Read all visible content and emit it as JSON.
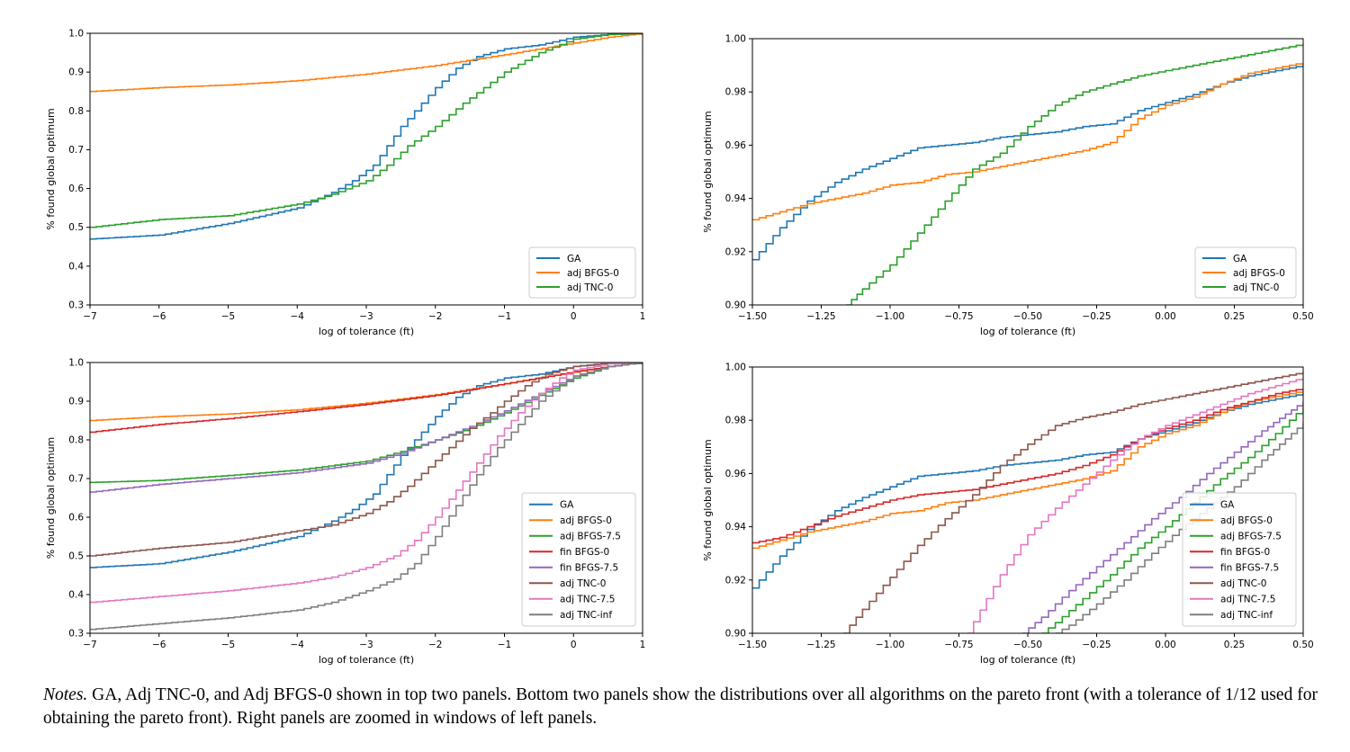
{
  "colors": {
    "GA": "#1f77b4",
    "adj BFGS-0": "#ff7f0e",
    "adj BFGS-7.5": "#2ca02c",
    "fin BFGS-0": "#d62728",
    "fin BFGS-7.5": "#9467bd",
    "adj TNC-0": "#8c564b",
    "adj TNC-7.5": "#e377c2",
    "adj TNC-inf": "#7f7f7f",
    "adj TNC-0 (top)": "#2ca02c"
  },
  "chart_data": [
    {
      "id": "top-left",
      "type": "line",
      "xlabel": "log of tolerance (ft)",
      "ylabel": "% found global optimum",
      "xlim": [
        -7,
        1
      ],
      "ylim": [
        0.3,
        1.0
      ],
      "xticks": [
        -7,
        -6,
        -5,
        -4,
        -3,
        -2,
        -1,
        0,
        1
      ],
      "xtick_labels": [
        "−7",
        "−6",
        "−5",
        "−4",
        "−3",
        "−2",
        "−1",
        "0",
        "1"
      ],
      "yticks": [
        0.3,
        0.4,
        0.5,
        0.6,
        0.7,
        0.8,
        0.9,
        1.0
      ],
      "ytick_labels": [
        "0.3",
        "0.4",
        "0.5",
        "0.6",
        "0.7",
        "0.8",
        "0.9",
        "1.0"
      ],
      "legend_position": "lower-right",
      "series": [
        {
          "name": "GA",
          "color": "#1f77b4",
          "x": [
            -7,
            -6,
            -5,
            -4,
            -3.5,
            -3.2,
            -2.9,
            -2.7,
            -2.5,
            -2.3,
            -2.0,
            -1.7,
            -1.4,
            -1.0,
            -0.5,
            0,
            0.5,
            1
          ],
          "y": [
            0.47,
            0.48,
            0.51,
            0.55,
            0.59,
            0.62,
            0.66,
            0.71,
            0.76,
            0.8,
            0.86,
            0.91,
            0.94,
            0.96,
            0.97,
            0.99,
            0.997,
            1.0
          ]
        },
        {
          "name": "adj BFGS-0",
          "color": "#ff7f0e",
          "x": [
            -7,
            -6,
            -5,
            -4,
            -3,
            -2,
            -1,
            0,
            0.5,
            1
          ],
          "y": [
            0.85,
            0.86,
            0.867,
            0.878,
            0.895,
            0.917,
            0.945,
            0.975,
            0.99,
            1.0
          ]
        },
        {
          "name": "adj TNC-0",
          "color": "#2ca02c",
          "x": [
            -7,
            -6,
            -5,
            -4,
            -3.5,
            -3,
            -2.7,
            -2.4,
            -2,
            -1.6,
            -1.3,
            -1,
            -0.5,
            0,
            0.5,
            1
          ],
          "y": [
            0.5,
            0.52,
            0.53,
            0.56,
            0.585,
            0.62,
            0.66,
            0.71,
            0.76,
            0.82,
            0.86,
            0.9,
            0.95,
            0.985,
            0.997,
            1.0
          ]
        }
      ]
    },
    {
      "id": "top-right",
      "type": "line",
      "xlabel": "log of tolerance (ft)",
      "ylabel": "% found global optimum",
      "xlim": [
        -1.5,
        0.5
      ],
      "ylim": [
        0.9,
        1.0
      ],
      "xticks": [
        -1.5,
        -1.25,
        -1.0,
        -0.75,
        -0.5,
        -0.25,
        0.0,
        0.25,
        0.5
      ],
      "xtick_labels": [
        "−1.50",
        "−1.25",
        "−1.00",
        "−0.75",
        "−0.50",
        "−0.25",
        "0.00",
        "0.25",
        "0.50"
      ],
      "yticks": [
        0.9,
        0.92,
        0.94,
        0.96,
        0.98,
        1.0
      ],
      "ytick_labels": [
        "0.90",
        "0.92",
        "0.94",
        "0.96",
        "0.98",
        "1.00"
      ],
      "legend_position": "lower-right",
      "series": [
        {
          "name": "GA",
          "color": "#1f77b4",
          "x": [
            -1.5,
            -1.4,
            -1.3,
            -1.2,
            -1.1,
            -1.0,
            -0.9,
            -0.8,
            -0.7,
            -0.6,
            -0.5,
            -0.4,
            -0.3,
            -0.2,
            -0.1,
            0.0,
            0.1,
            0.2,
            0.3,
            0.4,
            0.5
          ],
          "y": [
            0.917,
            0.929,
            0.939,
            0.946,
            0.951,
            0.955,
            0.959,
            0.96,
            0.961,
            0.963,
            0.964,
            0.965,
            0.967,
            0.968,
            0.973,
            0.976,
            0.979,
            0.983,
            0.986,
            0.988,
            0.99
          ]
        },
        {
          "name": "adj BFGS-0",
          "color": "#ff7f0e",
          "x": [
            -1.5,
            -1.4,
            -1.3,
            -1.2,
            -1.1,
            -1.0,
            -0.9,
            -0.8,
            -0.7,
            -0.6,
            -0.5,
            -0.4,
            -0.3,
            -0.2,
            -0.1,
            0.0,
            0.1,
            0.2,
            0.3,
            0.4,
            0.5
          ],
          "y": [
            0.932,
            0.935,
            0.938,
            0.94,
            0.942,
            0.945,
            0.946,
            0.949,
            0.95,
            0.952,
            0.954,
            0.956,
            0.958,
            0.961,
            0.97,
            0.975,
            0.978,
            0.983,
            0.987,
            0.989,
            0.991
          ]
        },
        {
          "name": "adj TNC-0",
          "color": "#2ca02c",
          "x": [
            -1.16,
            -1.1,
            -1.0,
            -0.9,
            -0.8,
            -0.7,
            -0.6,
            -0.5,
            -0.4,
            -0.3,
            -0.2,
            -0.1,
            0.0,
            0.1,
            0.2,
            0.3,
            0.4,
            0.5
          ],
          "y": [
            0.9,
            0.906,
            0.915,
            0.927,
            0.939,
            0.951,
            0.957,
            0.967,
            0.975,
            0.98,
            0.983,
            0.986,
            0.988,
            0.99,
            0.992,
            0.994,
            0.996,
            0.998
          ]
        }
      ]
    },
    {
      "id": "bottom-left",
      "type": "line",
      "xlabel": "log of tolerance (ft)",
      "ylabel": "% found global optimum",
      "xlim": [
        -7,
        1
      ],
      "ylim": [
        0.3,
        1.0
      ],
      "xticks": [
        -7,
        -6,
        -5,
        -4,
        -3,
        -2,
        -1,
        0,
        1
      ],
      "xtick_labels": [
        "−7",
        "−6",
        "−5",
        "−4",
        "−3",
        "−2",
        "−1",
        "0",
        "1"
      ],
      "yticks": [
        0.3,
        0.4,
        0.5,
        0.6,
        0.7,
        0.8,
        0.9,
        1.0
      ],
      "ytick_labels": [
        "0.3",
        "0.4",
        "0.5",
        "0.6",
        "0.7",
        "0.8",
        "0.9",
        "1.0"
      ],
      "legend_position": "lower-right",
      "series": [
        {
          "name": "GA",
          "color": "#1f77b4",
          "x": [
            -7,
            -6,
            -5,
            -4,
            -3.5,
            -3.2,
            -2.9,
            -2.7,
            -2.5,
            -2.3,
            -2.0,
            -1.7,
            -1.4,
            -1.0,
            -0.5,
            0,
            0.5,
            1
          ],
          "y": [
            0.47,
            0.48,
            0.51,
            0.55,
            0.59,
            0.62,
            0.66,
            0.71,
            0.76,
            0.8,
            0.86,
            0.91,
            0.94,
            0.96,
            0.97,
            0.99,
            0.997,
            1.0
          ]
        },
        {
          "name": "adj BFGS-0",
          "color": "#ff7f0e",
          "x": [
            -7,
            -6,
            -5,
            -4,
            -3,
            -2,
            -1,
            0,
            0.5,
            1
          ],
          "y": [
            0.85,
            0.86,
            0.867,
            0.878,
            0.895,
            0.917,
            0.945,
            0.975,
            0.99,
            1.0
          ]
        },
        {
          "name": "adj BFGS-7.5",
          "color": "#2ca02c",
          "x": [
            -7,
            -6,
            -5,
            -4,
            -3,
            -2.5,
            -2,
            -1.5,
            -1,
            -0.5,
            0,
            0.5,
            1
          ],
          "y": [
            0.69,
            0.695,
            0.708,
            0.722,
            0.745,
            0.77,
            0.8,
            0.83,
            0.87,
            0.915,
            0.96,
            0.99,
            1.0
          ]
        },
        {
          "name": "fin BFGS-0",
          "color": "#d62728",
          "x": [
            -7,
            -6,
            -5,
            -4,
            -3,
            -2,
            -1,
            0,
            0.5,
            1
          ],
          "y": [
            0.82,
            0.84,
            0.855,
            0.873,
            0.892,
            0.915,
            0.945,
            0.976,
            0.99,
            1.0
          ]
        },
        {
          "name": "fin BFGS-7.5",
          "color": "#9467bd",
          "x": [
            -7,
            -6,
            -5,
            -4,
            -3,
            -2.5,
            -2,
            -1.5,
            -1,
            -0.5,
            0,
            0.5,
            1
          ],
          "y": [
            0.665,
            0.685,
            0.7,
            0.715,
            0.74,
            0.765,
            0.8,
            0.835,
            0.875,
            0.92,
            0.965,
            0.99,
            1.0
          ]
        },
        {
          "name": "adj TNC-0",
          "color": "#8c564b",
          "x": [
            -7,
            -6,
            -5,
            -4,
            -3.5,
            -3,
            -2.7,
            -2.4,
            -2.1,
            -1.8,
            -1.5,
            -1.2,
            -1,
            -0.7,
            -0.4,
            0,
            0.5,
            1
          ],
          "y": [
            0.5,
            0.52,
            0.535,
            0.565,
            0.58,
            0.61,
            0.64,
            0.68,
            0.73,
            0.78,
            0.83,
            0.87,
            0.9,
            0.94,
            0.97,
            0.99,
            0.998,
            1.0
          ]
        },
        {
          "name": "adj TNC-7.5",
          "color": "#e377c2",
          "x": [
            -7,
            -6,
            -5,
            -4,
            -3.5,
            -3,
            -2.6,
            -2.3,
            -2,
            -1.7,
            -1.4,
            -1.1,
            -0.8,
            -0.5,
            -0.2,
            0,
            0.5,
            1
          ],
          "y": [
            0.38,
            0.395,
            0.41,
            0.43,
            0.445,
            0.47,
            0.5,
            0.54,
            0.6,
            0.67,
            0.74,
            0.81,
            0.87,
            0.92,
            0.96,
            0.98,
            0.997,
            1.0
          ]
        },
        {
          "name": "adj TNC-inf",
          "color": "#7f7f7f",
          "x": [
            -7,
            -6,
            -5,
            -4,
            -3.5,
            -3,
            -2.6,
            -2.3,
            -2,
            -1.7,
            -1.4,
            -1.1,
            -0.8,
            -0.5,
            -0.2,
            0,
            0.5,
            1
          ],
          "y": [
            0.31,
            0.325,
            0.34,
            0.36,
            0.38,
            0.41,
            0.44,
            0.48,
            0.55,
            0.63,
            0.71,
            0.78,
            0.84,
            0.9,
            0.94,
            0.965,
            0.99,
            1.0
          ]
        }
      ]
    },
    {
      "id": "bottom-right",
      "type": "line",
      "xlabel": "log of tolerance (ft)",
      "ylabel": "% found global optimum",
      "xlim": [
        -1.5,
        0.5
      ],
      "ylim": [
        0.9,
        1.0
      ],
      "xticks": [
        -1.5,
        -1.25,
        -1.0,
        -0.75,
        -0.5,
        -0.25,
        0.0,
        0.25,
        0.5
      ],
      "xtick_labels": [
        "−1.50",
        "−1.25",
        "−1.00",
        "−0.75",
        "−0.50",
        "−0.25",
        "0.00",
        "0.25",
        "0.50"
      ],
      "yticks": [
        0.9,
        0.92,
        0.94,
        0.96,
        0.98,
        1.0
      ],
      "ytick_labels": [
        "0.90",
        "0.92",
        "0.94",
        "0.96",
        "0.98",
        "1.00"
      ],
      "legend_position": "lower-right",
      "series": [
        {
          "name": "GA",
          "color": "#1f77b4",
          "x": [
            -1.5,
            -1.4,
            -1.3,
            -1.2,
            -1.1,
            -1.0,
            -0.9,
            -0.8,
            -0.7,
            -0.6,
            -0.5,
            -0.4,
            -0.3,
            -0.2,
            -0.1,
            0.0,
            0.1,
            0.2,
            0.3,
            0.4,
            0.5
          ],
          "y": [
            0.917,
            0.929,
            0.939,
            0.946,
            0.951,
            0.955,
            0.959,
            0.96,
            0.961,
            0.963,
            0.964,
            0.965,
            0.967,
            0.968,
            0.973,
            0.976,
            0.979,
            0.983,
            0.986,
            0.988,
            0.99
          ]
        },
        {
          "name": "adj BFGS-0",
          "color": "#ff7f0e",
          "x": [
            -1.5,
            -1.4,
            -1.3,
            -1.2,
            -1.1,
            -1.0,
            -0.9,
            -0.8,
            -0.7,
            -0.6,
            -0.5,
            -0.4,
            -0.3,
            -0.2,
            -0.1,
            0.0,
            0.1,
            0.2,
            0.3,
            0.4,
            0.5
          ],
          "y": [
            0.932,
            0.935,
            0.938,
            0.94,
            0.942,
            0.945,
            0.946,
            0.949,
            0.95,
            0.952,
            0.954,
            0.956,
            0.958,
            0.961,
            0.97,
            0.975,
            0.978,
            0.983,
            0.987,
            0.989,
            0.991
          ]
        },
        {
          "name": "adj BFGS-7.5",
          "color": "#2ca02c",
          "x": [
            -0.45,
            -0.4,
            -0.3,
            -0.2,
            -0.1,
            0.0,
            0.1,
            0.2,
            0.3,
            0.4,
            0.5
          ],
          "y": [
            0.9,
            0.904,
            0.913,
            0.922,
            0.932,
            0.94,
            0.949,
            0.958,
            0.966,
            0.975,
            0.985
          ]
        },
        {
          "name": "fin BFGS-0",
          "color": "#d62728",
          "x": [
            -1.5,
            -1.4,
            -1.3,
            -1.2,
            -1.1,
            -1.0,
            -0.9,
            -0.8,
            -0.7,
            -0.6,
            -0.5,
            -0.4,
            -0.3,
            -0.2,
            -0.1,
            0.0,
            0.1,
            0.2,
            0.3,
            0.4,
            0.5
          ],
          "y": [
            0.934,
            0.936,
            0.94,
            0.944,
            0.947,
            0.95,
            0.952,
            0.953,
            0.954,
            0.956,
            0.958,
            0.96,
            0.963,
            0.967,
            0.973,
            0.977,
            0.98,
            0.984,
            0.987,
            0.99,
            0.992
          ]
        },
        {
          "name": "fin BFGS-7.5",
          "color": "#9467bd",
          "x": [
            -0.52,
            -0.45,
            -0.35,
            -0.25,
            -0.15,
            -0.05,
            0.05,
            0.15,
            0.25,
            0.35,
            0.5
          ],
          "y": [
            0.9,
            0.906,
            0.916,
            0.925,
            0.934,
            0.943,
            0.951,
            0.96,
            0.968,
            0.976,
            0.987
          ]
        },
        {
          "name": "adj TNC-0",
          "color": "#8c564b",
          "x": [
            -1.17,
            -1.1,
            -1.0,
            -0.9,
            -0.8,
            -0.7,
            -0.6,
            -0.5,
            -0.4,
            -0.3,
            -0.2,
            -0.1,
            0.0,
            0.1,
            0.2,
            0.3,
            0.4,
            0.5
          ],
          "y": [
            0.9,
            0.909,
            0.921,
            0.933,
            0.943,
            0.952,
            0.963,
            0.971,
            0.978,
            0.981,
            0.983,
            0.986,
            0.988,
            0.99,
            0.992,
            0.994,
            0.996,
            0.998
          ]
        },
        {
          "name": "adj TNC-7.5",
          "color": "#e377c2",
          "x": [
            -0.72,
            -0.65,
            -0.6,
            -0.5,
            -0.4,
            -0.3,
            -0.2,
            -0.1,
            0.0,
            0.1,
            0.2,
            0.3,
            0.4,
            0.5
          ],
          "y": [
            0.9,
            0.913,
            0.922,
            0.937,
            0.947,
            0.956,
            0.965,
            0.973,
            0.978,
            0.982,
            0.986,
            0.99,
            0.993,
            0.996
          ]
        },
        {
          "name": "adj TNC-inf",
          "color": "#7f7f7f",
          "x": [
            -0.4,
            -0.35,
            -0.25,
            -0.15,
            -0.05,
            0.05,
            0.15,
            0.25,
            0.35,
            0.5
          ],
          "y": [
            0.9,
            0.903,
            0.911,
            0.92,
            0.93,
            0.939,
            0.947,
            0.955,
            0.965,
            0.979
          ]
        }
      ]
    }
  ],
  "notes": {
    "lead": "Notes.",
    "text": " GA, Adj TNC-0, and Adj BFGS-0 shown in top two panels. Bottom two panels show the distributions over all algorithms on the pareto front (with a tolerance of 1/12 used for obtaining the pareto front). Right panels are zoomed in windows of left panels."
  }
}
